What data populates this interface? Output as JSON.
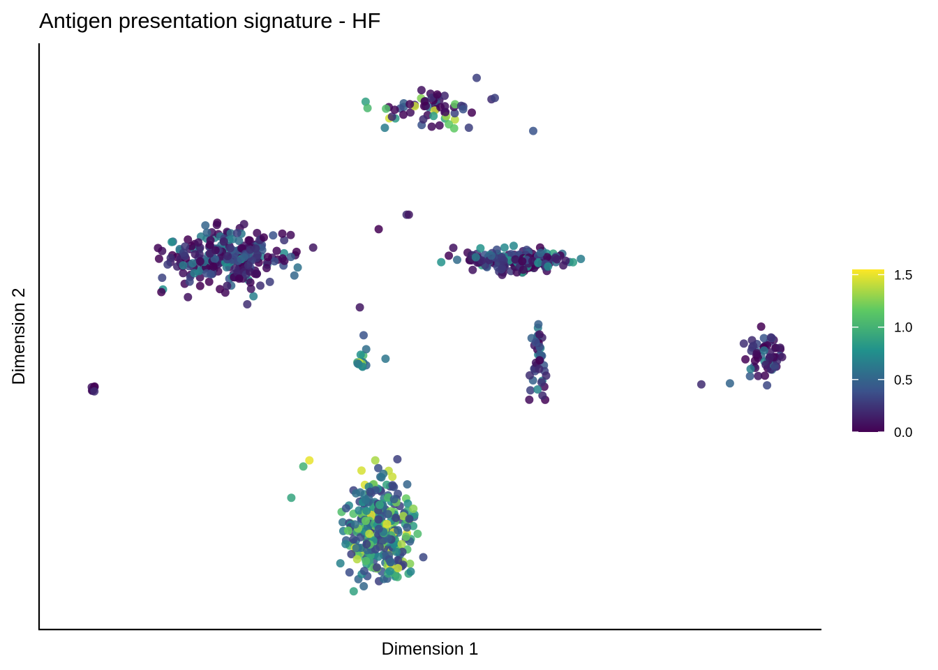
{
  "chart_data": {
    "type": "scatter",
    "title": "Antigen presentation signature - HF",
    "xlabel": "Dimension 1",
    "ylabel": "Dimension 2",
    "xlim": [
      0,
      100
    ],
    "ylim": [
      0,
      100
    ],
    "axis_ticks": false,
    "grid": false,
    "legend": {
      "position": "right",
      "type": "colorbar",
      "title": "",
      "min": 0.0,
      "max": 1.55,
      "ticks": [
        0.0,
        0.5,
        1.0,
        1.5
      ],
      "tick_labels": [
        "0.0",
        "0.5",
        "1.0",
        "1.5"
      ],
      "colormap": "viridis",
      "colors": [
        "#440154",
        "#3b528b",
        "#21918c",
        "#5ec962",
        "#fde725"
      ]
    },
    "clusters": [
      {
        "center": [
          23.0,
          64.0
        ],
        "spread": [
          7.5,
          5.5
        ],
        "count": 260,
        "value_range": [
          0.0,
          0.8
        ]
      },
      {
        "center": [
          61.5,
          63.5
        ],
        "spread": [
          7.0,
          2.0
        ],
        "count": 190,
        "value_range": [
          0.0,
          0.9
        ]
      },
      {
        "center": [
          64.5,
          46.0
        ],
        "spread": [
          1.2,
          7.0
        ],
        "count": 40,
        "value_range": [
          0.0,
          0.8
        ]
      },
      {
        "center": [
          49.5,
          91.0
        ],
        "spread": [
          6.0,
          3.5
        ],
        "count": 60,
        "value_range": [
          0.0,
          1.5
        ]
      },
      {
        "center": [
          43.5,
          15.5
        ],
        "spread": [
          4.5,
          9.0
        ],
        "count": 330,
        "value_range": [
          0.3,
          1.5
        ]
      },
      {
        "center": [
          94.5,
          47.0
        ],
        "spread": [
          2.5,
          5.0
        ],
        "count": 55,
        "value_range": [
          0.0,
          0.7
        ]
      },
      {
        "center": [
          41.0,
          45.5
        ],
        "spread": [
          0.8,
          1.6
        ],
        "count": 14,
        "value_range": [
          0.5,
          1.5
        ]
      },
      {
        "center": [
          5.5,
          40.5
        ],
        "spread": [
          0.4,
          0.5
        ],
        "count": 8,
        "value_range": [
          0.0,
          0.3
        ]
      }
    ],
    "points": [
      {
        "x": 31.7,
        "y": 21.1,
        "value": 0.9
      },
      {
        "x": 33.3,
        "y": 26.7,
        "value": 1.0
      },
      {
        "x": 34.1,
        "y": 27.8,
        "value": 1.5
      },
      {
        "x": 41.3,
        "y": 50.2,
        "value": 0.4
      },
      {
        "x": 44.2,
        "y": 46.0,
        "value": 0.6
      },
      {
        "x": 40.8,
        "y": 55.2,
        "value": 0.1
      },
      {
        "x": 43.3,
        "y": 69.2,
        "value": 0.0
      },
      {
        "x": 47.0,
        "y": 71.8,
        "value": 0.2
      },
      {
        "x": 47.3,
        "y": 71.8,
        "value": 0.1
      },
      {
        "x": 34.6,
        "y": 65.9,
        "value": 0.1
      },
      {
        "x": 56.3,
        "y": 96.3,
        "value": 0.3
      },
      {
        "x": 58.7,
        "y": 92.7,
        "value": 0.3
      },
      {
        "x": 63.8,
        "y": 86.8,
        "value": 0.4
      },
      {
        "x": 86.1,
        "y": 41.4,
        "value": 0.2
      },
      {
        "x": 89.9,
        "y": 41.6,
        "value": 0.5
      }
    ]
  }
}
